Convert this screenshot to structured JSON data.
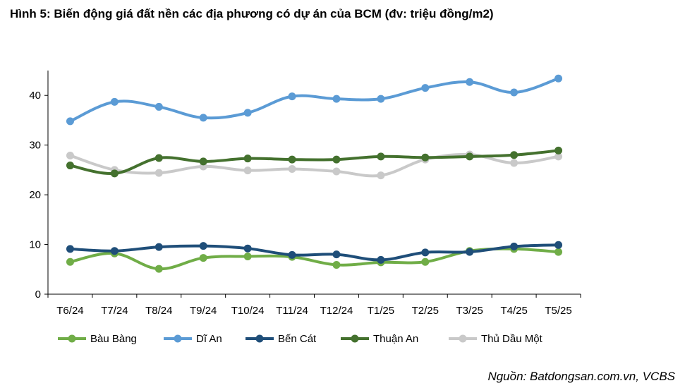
{
  "title": "Hình 5: Biến động giá đất nền các địa phương có dự án của BCM (đv: triệu đồng/m2)",
  "source": "Nguồn: Batdongsan.com.vn, VCBS",
  "chart_data": {
    "type": "line",
    "title": "Hình 5: Biến động giá đất nền các địa phương có dự án của BCM (đv: triệu đồng/m2)",
    "xlabel": "",
    "ylabel": "",
    "categories": [
      "T6/24",
      "T7/24",
      "T8/24",
      "T9/24",
      "T10/24",
      "T11/24",
      "T12/24",
      "T1/25",
      "T2/25",
      "T3/25",
      "T4/25",
      "T5/25"
    ],
    "ylim": [
      0,
      45
    ],
    "yticks": [
      0,
      10,
      20,
      30,
      40
    ],
    "grid": false,
    "legend": "bottom",
    "series": [
      {
        "name": "Bàu Bàng",
        "color": "#70AD47",
        "values": [
          6.5,
          8.2,
          5.1,
          7.3,
          7.6,
          7.5,
          5.9,
          6.4,
          6.5,
          8.7,
          9.1,
          8.5
        ]
      },
      {
        "name": "Dĩ An",
        "color": "#5B9BD5",
        "values": [
          34.8,
          38.7,
          37.7,
          35.5,
          36.5,
          39.8,
          39.3,
          39.3,
          41.5,
          42.7,
          40.6,
          43.4
        ]
      },
      {
        "name": "Bến Cát",
        "color": "#1F4E79",
        "values": [
          9.1,
          8.7,
          9.5,
          9.7,
          9.2,
          7.9,
          8.0,
          6.9,
          8.4,
          8.5,
          9.6,
          9.9
        ]
      },
      {
        "name": "Thuận An",
        "color": "#44712E",
        "values": [
          25.9,
          24.3,
          27.4,
          26.7,
          27.3,
          27.1,
          27.1,
          27.7,
          27.5,
          27.7,
          28.0,
          28.9
        ]
      },
      {
        "name": "Thủ Dầu Một",
        "color": "#C9C9C9",
        "values": [
          27.9,
          25.0,
          24.4,
          25.7,
          24.9,
          25.2,
          24.7,
          23.9,
          27.1,
          28.1,
          26.4,
          27.7
        ]
      }
    ]
  }
}
